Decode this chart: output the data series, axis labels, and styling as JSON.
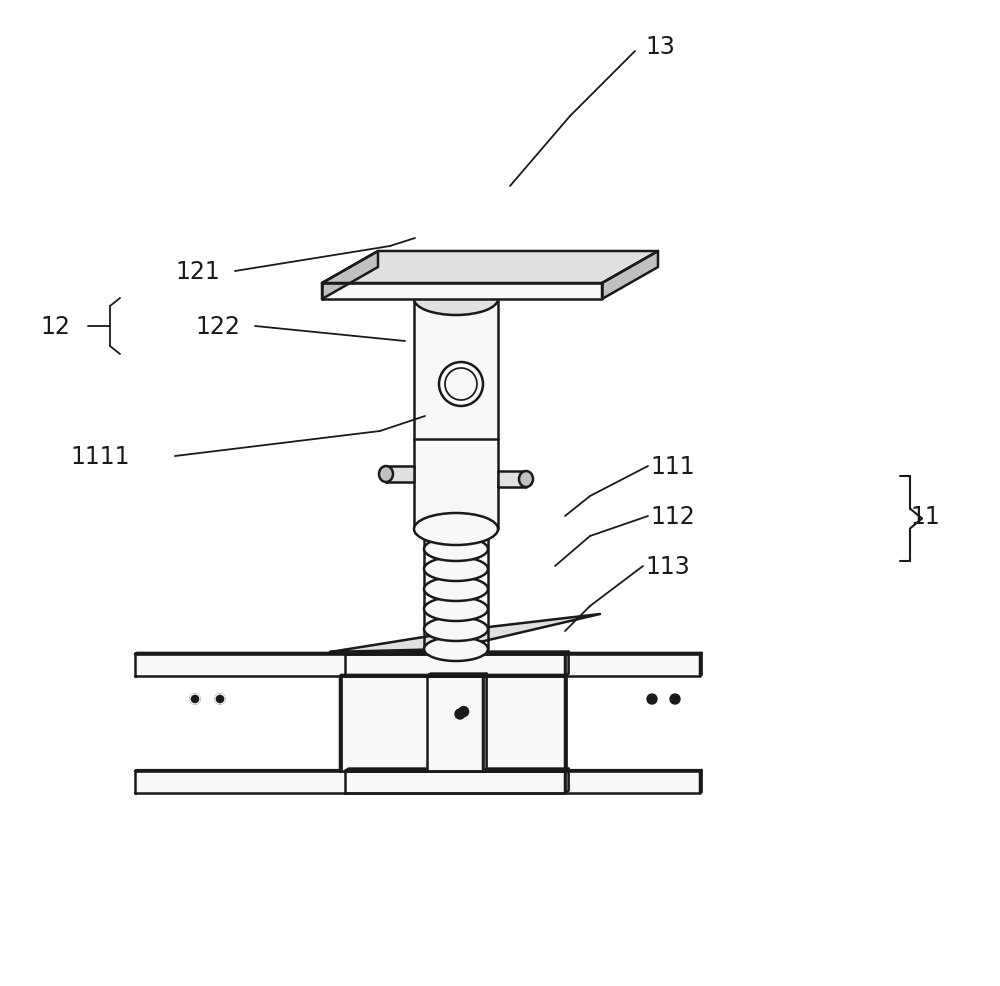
{
  "bg_color": "#ffffff",
  "line_color": "#1a1a1a",
  "line_width": 1.8,
  "label_fontsize": 17,
  "figsize": [
    10.0,
    9.87
  ],
  "face_white": "#f8f8f8",
  "face_light": "#e0e0e0",
  "face_mid": "#c0c0c0",
  "face_dark": "#a0a0a0",
  "face_darker": "#888888"
}
